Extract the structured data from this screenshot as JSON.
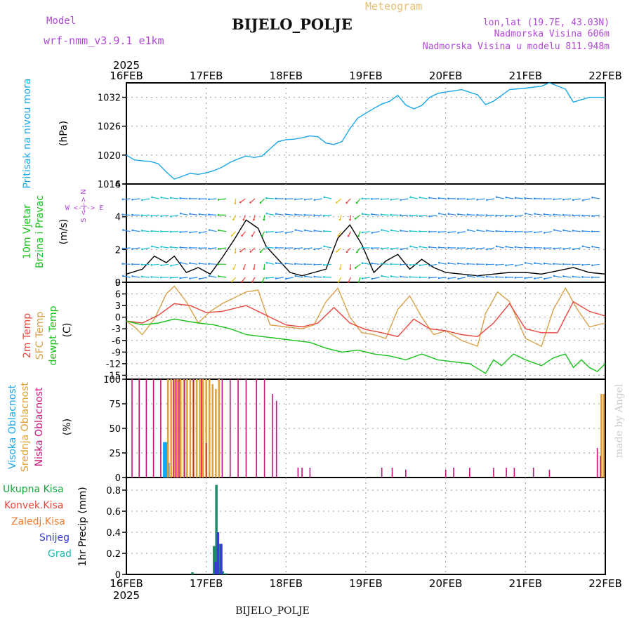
{
  "header": {
    "model_label": "Model",
    "model_name": "wrf-nmm_v3.9.1  e1km",
    "title": "BIJELO_POLJE",
    "meteogram": "Meteogram",
    "coords": "lon,lat (19.7E, 43.03N)",
    "elev": "Nadmorska Visina 606m",
    "elev_model": "Nadmorska Visina u modelu 811.948m",
    "footer": "BIJELO_POLJE",
    "credit": "made by Angel"
  },
  "colors": {
    "pressure": "#1aa7e8",
    "t2m": "#e8463c",
    "sfc": "#d9a04a",
    "dew": "#16c21a",
    "high_cloud": "#1aa7e8",
    "mid_cloud": "#e0a030",
    "low_cloud": "#c8127a",
    "total_precip": "#17a33c",
    "conv_precip": "#e8463c",
    "freezing": "#f07a2a",
    "snow": "#3a3ad8",
    "graupel": "#20b8b0",
    "wind_text": "#16c21a",
    "dir_text": "#b048d8"
  },
  "chart_data": [
    {
      "id": "pressure",
      "type": "line",
      "ylabel_1": "Pritisak na nivou mora",
      "ylabel_2": "(hPa)",
      "ylim": [
        1014,
        1035
      ],
      "yticks": [
        1014,
        1020,
        1026,
        1032
      ],
      "x_unit": "days since 16FEB2025 00UTC",
      "x_tick_labels_top": [
        "16FEB",
        "17FEB",
        "18FEB",
        "19FEB",
        "20FEB",
        "21FEB",
        "22FEB"
      ],
      "year": "2025",
      "series": [
        {
          "name": "Pritisak",
          "x": [
            0,
            0.1,
            0.2,
            0.3,
            0.4,
            0.5,
            0.6,
            0.7,
            0.8,
            0.9,
            1.0,
            1.1,
            1.2,
            1.3,
            1.4,
            1.5,
            1.6,
            1.7,
            1.8,
            1.9,
            2.0,
            2.1,
            2.2,
            2.3,
            2.4,
            2.5,
            2.6,
            2.7,
            2.8,
            2.9,
            3.0,
            3.1,
            3.2,
            3.3,
            3.4,
            3.5,
            3.6,
            3.7,
            3.8,
            3.9,
            4.0,
            4.2,
            4.4,
            4.5,
            4.6,
            4.8,
            5.0,
            5.2,
            5.3,
            5.5,
            5.6,
            5.8,
            6.0
          ],
          "values": [
            1020,
            1019,
            1018.8,
            1018.7,
            1018.2,
            1016.5,
            1015,
            1015.6,
            1016.2,
            1016,
            1016.3,
            1016.8,
            1017.5,
            1018.5,
            1019.2,
            1019.8,
            1019.5,
            1019.8,
            1021.3,
            1022.8,
            1023.2,
            1023.3,
            1023.6,
            1024,
            1023.8,
            1022.5,
            1022.2,
            1022.8,
            1025.5,
            1027.7,
            1028.7,
            1029.7,
            1030.6,
            1031.2,
            1032.4,
            1030.4,
            1029.6,
            1030.3,
            1032,
            1032.8,
            1033.1,
            1033.6,
            1032.5,
            1030.5,
            1031.2,
            1033.6,
            1033.9,
            1034.3,
            1035,
            1033.7,
            1031,
            1032,
            1032
          ]
        }
      ]
    },
    {
      "id": "wind",
      "type": "line",
      "ylabel_1": "10m Vjetar",
      "ylabel_2": "Brzina i Pravac",
      "ylabel_3": "(m/s)",
      "dir_label": "W  <-|->  E",
      "dir_label_v": "S <-|-> N",
      "ylim": [
        0,
        6
      ],
      "yticks": [
        0,
        2,
        4,
        6
      ],
      "series": [
        {
          "name": "10m Vjetar",
          "x": [
            0,
            0.2,
            0.35,
            0.5,
            0.6,
            0.75,
            0.9,
            1.05,
            1.2,
            1.35,
            1.5,
            1.65,
            1.75,
            1.9,
            2.05,
            2.2,
            2.35,
            2.5,
            2.65,
            2.8,
            2.95,
            3.1,
            3.25,
            3.4,
            3.55,
            3.7,
            3.85,
            4.0,
            4.2,
            4.4,
            4.6,
            4.8,
            5.0,
            5.2,
            5.4,
            5.6,
            5.8,
            6.0
          ],
          "values": [
            0.5,
            0.8,
            1.6,
            1.2,
            1.6,
            0.6,
            0.9,
            0.5,
            1.5,
            2.6,
            3.8,
            3.3,
            2.2,
            1.4,
            0.6,
            0.4,
            0.6,
            0.8,
            2.7,
            3.5,
            2.3,
            0.6,
            1.3,
            1.7,
            0.8,
            1.4,
            0.9,
            0.6,
            0.5,
            0.4,
            0.5,
            0.6,
            0.6,
            0.5,
            0.7,
            0.9,
            0.6,
            0.5
          ]
        }
      ]
    },
    {
      "id": "temperature",
      "type": "line",
      "ylabel_1": "2m Temp",
      "ylabel_2": "SFC Temp",
      "ylabel_3": "dewpt Temp",
      "ylabel_4": "(C)",
      "ylim": [
        -16,
        9
      ],
      "yticks": [
        -15,
        -12,
        -9,
        -6,
        -3,
        0,
        3,
        6,
        9
      ],
      "series": [
        {
          "name": "2m Temp",
          "x": [
            0,
            0.2,
            0.4,
            0.6,
            0.8,
            1.0,
            1.2,
            1.5,
            1.8,
            2.0,
            2.2,
            2.4,
            2.6,
            2.8,
            3.0,
            3.2,
            3.4,
            3.6,
            3.8,
            4.0,
            4.2,
            4.4,
            4.6,
            4.8,
            5.0,
            5.2,
            5.4,
            5.6,
            5.8,
            6.0
          ],
          "values": [
            -1,
            -1.5,
            0.5,
            3.5,
            3,
            1.2,
            1.5,
            3,
            0,
            -2,
            -2.5,
            -1.5,
            2.5,
            -1.5,
            -3.2,
            -4,
            -5,
            -0.5,
            -3,
            -3.5,
            -4.5,
            -5,
            -1.5,
            3.5,
            -3,
            -4,
            -4,
            4,
            1.5,
            0.3
          ]
        },
        {
          "name": "SFC Temp",
          "x": [
            0,
            0.1,
            0.2,
            0.35,
            0.5,
            0.6,
            0.75,
            0.9,
            1.05,
            1.2,
            1.35,
            1.5,
            1.65,
            1.8,
            2.0,
            2.2,
            2.35,
            2.5,
            2.65,
            2.8,
            2.95,
            3.1,
            3.25,
            3.4,
            3.55,
            3.7,
            3.85,
            4.0,
            4.2,
            4.4,
            4.5,
            4.65,
            4.8,
            5.0,
            5.2,
            5.35,
            5.5,
            5.65,
            5.8,
            6.0
          ],
          "values": [
            -1,
            -2.5,
            -4.5,
            -0.5,
            6,
            8,
            4,
            -1.5,
            1.5,
            3.5,
            5,
            6.5,
            7,
            -2,
            -2.5,
            -3,
            -2,
            4,
            7.5,
            0,
            -4,
            -4.5,
            -5.5,
            2,
            5.5,
            0,
            -4.5,
            -3.5,
            -6,
            -7.5,
            1,
            6.5,
            4,
            -5.5,
            -7.5,
            2,
            7.5,
            2,
            -2.5,
            -1.5
          ]
        },
        {
          "name": "dewpt Temp",
          "x": [
            0,
            0.2,
            0.4,
            0.6,
            0.75,
            0.9,
            1.1,
            1.3,
            1.5,
            1.7,
            1.9,
            2.1,
            2.3,
            2.5,
            2.7,
            2.9,
            3.1,
            3.3,
            3.5,
            3.7,
            3.9,
            4.1,
            4.3,
            4.5,
            4.6,
            4.7,
            4.85,
            5.0,
            5.2,
            5.35,
            5.5,
            5.6,
            5.7,
            5.8,
            5.9,
            6.0
          ],
          "values": [
            -1,
            -2,
            -1.5,
            -0.5,
            -1,
            -1.5,
            -2,
            -3,
            -4.5,
            -5,
            -5.5,
            -6,
            -6.5,
            -8,
            -9,
            -8.5,
            -9.5,
            -10,
            -11,
            -9.5,
            -11,
            -11.5,
            -12,
            -14.5,
            -11,
            -12.5,
            -9.5,
            -11,
            -12.5,
            -10.5,
            -9.5,
            -13,
            -11,
            -13,
            -14,
            -12
          ]
        }
      ]
    },
    {
      "id": "cloud",
      "type": "bar",
      "ylabel_1": "Visoka Oblacnost",
      "ylabel_2": "Srednja Oblacnost",
      "ylabel_3": "Niska Oblacnost",
      "ylabel_4": "(%)",
      "ylim": [
        0,
        100
      ],
      "yticks": [
        0,
        25,
        50,
        75,
        100
      ],
      "series": [
        {
          "name": "Visoka Oblacnost",
          "x": [
            0.48,
            0.5,
            0.52
          ],
          "values": [
            36,
            36,
            15
          ]
        },
        {
          "name": "Srednja Oblacnost",
          "x": [
            0.52,
            0.56,
            0.6,
            0.64,
            0.68,
            0.72,
            0.76,
            0.8,
            0.84,
            0.88,
            0.92,
            0.96,
            1.0,
            1.04,
            1.08,
            1.12,
            1.16,
            5.95,
            5.98
          ],
          "values": [
            100,
            100,
            100,
            100,
            100,
            100,
            100,
            100,
            100,
            100,
            100,
            100,
            100,
            100,
            95,
            90,
            100,
            85,
            85
          ]
        },
        {
          "name": "Niska Oblacnost",
          "x": [
            0.07,
            0.16,
            0.25,
            0.34,
            0.43,
            0.59,
            0.62,
            0.66,
            0.73,
            0.84,
            0.94,
            1.0,
            1.2,
            1.3,
            1.4,
            1.5,
            1.63,
            1.73,
            1.83,
            1.88,
            2.15,
            2.2,
            2.3,
            3.2,
            3.33,
            3.5,
            4.0,
            4.1,
            4.3,
            4.6,
            4.76,
            4.86,
            5.1,
            5.3,
            5.9,
            5.94
          ],
          "values": [
            100,
            100,
            100,
            100,
            100,
            100,
            100,
            100,
            100,
            100,
            100,
            35,
            100,
            100,
            100,
            100,
            100,
            100,
            85,
            78,
            10,
            10,
            10,
            10,
            10,
            8,
            8,
            10,
            10,
            10,
            10,
            10,
            10,
            8,
            30,
            22
          ]
        }
      ]
    },
    {
      "id": "precip",
      "type": "bar",
      "ylabel_main": "1hr Precip (mm)",
      "legend": [
        "Ukupna Kisa",
        "Konvek.Kisa",
        "Zaledj.Kisa",
        "Snijeg",
        "Grad"
      ],
      "ylim": [
        0,
        0.92
      ],
      "yticks": [
        0,
        0.2,
        0.4,
        0.6,
        0.8
      ],
      "x_tick_labels_bottom": [
        "16FEB",
        "17FEB",
        "18FEB",
        "19FEB",
        "20FEB",
        "21FEB",
        "22FEB"
      ],
      "year": "2025",
      "series": [
        {
          "name": "Ukupna Kisa",
          "x": [
            0.83,
            1.1,
            1.13,
            1.17,
            1.21,
            1.25
          ],
          "values": [
            0.02,
            0.27,
            0.85,
            0.29,
            0.03,
            0.01
          ]
        },
        {
          "name": "Snijeg",
          "x": [
            1.12,
            1.15,
            1.19
          ],
          "values": [
            0.12,
            0.4,
            0.29
          ]
        }
      ]
    }
  ]
}
